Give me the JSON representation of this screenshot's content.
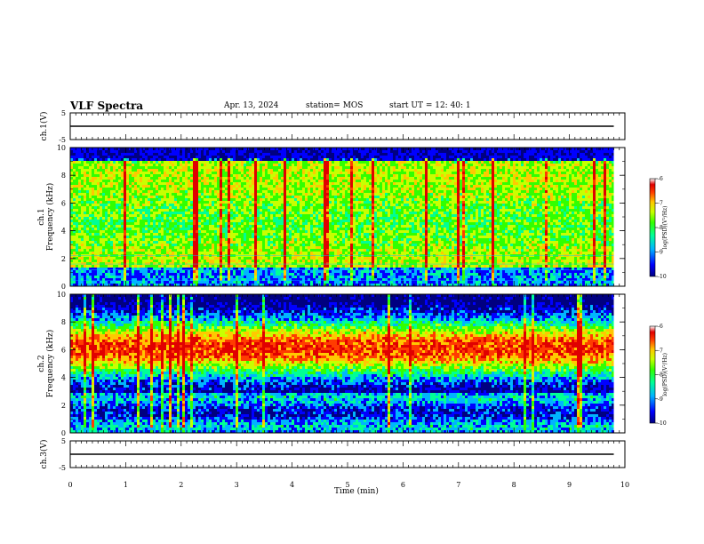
{
  "header": {
    "title": "VLF Spectra",
    "date": "Apr. 13, 2024",
    "station": "station= MOS",
    "start_ut": "start UT = 12: 40: 1"
  },
  "colors": {
    "scale": [
      "#000080",
      "#0000ff",
      "#00b4ff",
      "#00ff96",
      "#32ff00",
      "#c8ff00",
      "#ffc800",
      "#ff3c00",
      "#e00000",
      "#ffffff"
    ],
    "trace": "#000000"
  },
  "chart_data": [
    {
      "type": "line",
      "panel": "ch1-voltage",
      "ylabel": "ch.1(V)",
      "ylim": [
        -5,
        5
      ],
      "yticks": [
        5,
        -5
      ],
      "xlim": [
        0,
        10
      ],
      "series": [
        {
          "x": [
            0,
            9.8
          ],
          "y": [
            0,
            0
          ]
        }
      ]
    },
    {
      "type": "heatmap",
      "panel": "ch1-spectrogram",
      "ylabel": "ch.1 Frequency (kHz)",
      "ylim": [
        0,
        10
      ],
      "yticks": [
        0,
        2,
        4,
        6,
        8,
        10
      ],
      "xlim": [
        0,
        10
      ],
      "data_end_min": 9.8,
      "intensity_desc": "broadband noise, strongest 2-9 kHz, bright vertical impulsive lines",
      "colorbar": {
        "label": "log(PSD)(V²/Hz)",
        "range": [
          -10,
          -6
        ],
        "ticks": [
          -6,
          -7,
          -8,
          -9,
          -10
        ]
      }
    },
    {
      "type": "heatmap",
      "panel": "ch2-spectrogram",
      "ylabel": "ch.2 Frequency (kHz)",
      "ylim": [
        0,
        10
      ],
      "yticks": [
        0,
        2,
        4,
        6,
        8,
        10
      ],
      "xlim": [
        0,
        10
      ],
      "data_end_min": 9.8,
      "intensity_desc": "strong band centered near 6 kHz (4-8 kHz), weaker below 3 kHz",
      "colorbar": {
        "label": "log(PSD)(V²/Hz)",
        "range": [
          -10,
          -6
        ],
        "ticks": [
          -6,
          -7,
          -8,
          -9,
          -10
        ]
      }
    },
    {
      "type": "line",
      "panel": "ch3-voltage",
      "ylabel": "ch.3(V)",
      "ylim": [
        -5,
        5
      ],
      "yticks": [
        5,
        -5
      ],
      "xlim": [
        0,
        10
      ],
      "series": [
        {
          "x": [
            0,
            9.8
          ],
          "y": [
            0,
            0
          ]
        }
      ]
    }
  ],
  "xaxis": {
    "label": "Time (min)",
    "ticks": [
      0,
      1,
      2,
      3,
      4,
      5,
      6,
      7,
      8,
      9,
      10
    ]
  }
}
